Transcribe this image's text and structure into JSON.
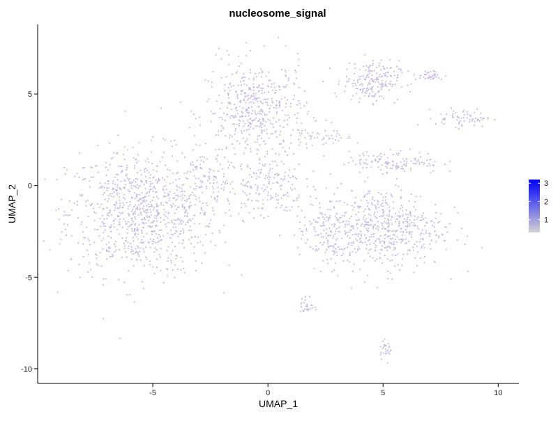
{
  "chart_data": {
    "type": "scatter",
    "title": "nucleosome_signal",
    "xlabel": "UMAP_1",
    "ylabel": "UMAP_2",
    "xlim": [
      -10.0,
      10.9
    ],
    "ylim": [
      -10.8,
      8.8
    ],
    "x_ticks": [
      -5,
      0,
      5,
      10
    ],
    "y_ticks": [
      -10,
      -5,
      0,
      5
    ],
    "grid": false,
    "legend": {
      "placement": "right",
      "type": "colorbar",
      "ticks": [
        1,
        2,
        3
      ],
      "range": [
        0.3,
        3.2
      ],
      "low_color": "#d3d3d3",
      "high_color": "#0000ff"
    },
    "point_color": "#c4b5e0",
    "point_value_typical": 0.6,
    "clusters": [
      {
        "center": [
          -5.5,
          -1.5
        ],
        "spread": [
          1.6,
          1.7
        ],
        "share": 0.28
      },
      {
        "center": [
          -0.5,
          4.0
        ],
        "spread": [
          1.1,
          1.4
        ],
        "share": 0.15
      },
      {
        "center": [
          4.5,
          5.7
        ],
        "spread": [
          0.6,
          0.55
        ],
        "share": 0.06
      },
      {
        "center": [
          7.0,
          6.0
        ],
        "spread": [
          0.35,
          0.15
        ],
        "share": 0.012
      },
      {
        "center": [
          8.5,
          3.7
        ],
        "spread": [
          0.6,
          0.25
        ],
        "share": 0.02
      },
      {
        "center": [
          5.0,
          -2.3
        ],
        "spread": [
          1.3,
          1.1
        ],
        "share": 0.17
      },
      {
        "center": [
          2.5,
          -2.6
        ],
        "spread": [
          0.6,
          0.9
        ],
        "share": 0.04
      },
      {
        "center": [
          5.5,
          1.3
        ],
        "spread": [
          1.0,
          0.3
        ],
        "share": 0.04
      },
      {
        "center": [
          0.0,
          0.0
        ],
        "spread": [
          0.8,
          0.9
        ],
        "share": 0.05
      },
      {
        "center": [
          1.7,
          -6.6
        ],
        "spread": [
          0.15,
          0.3
        ],
        "share": 0.008
      },
      {
        "center": [
          5.1,
          -8.9
        ],
        "spread": [
          0.15,
          0.25
        ],
        "share": 0.008
      },
      {
        "center": [
          2.5,
          2.6
        ],
        "spread": [
          0.6,
          0.2
        ],
        "share": 0.012
      },
      {
        "center": [
          -2.5,
          0.0
        ],
        "spread": [
          0.6,
          1.2
        ],
        "share": 0.03
      }
    ]
  }
}
